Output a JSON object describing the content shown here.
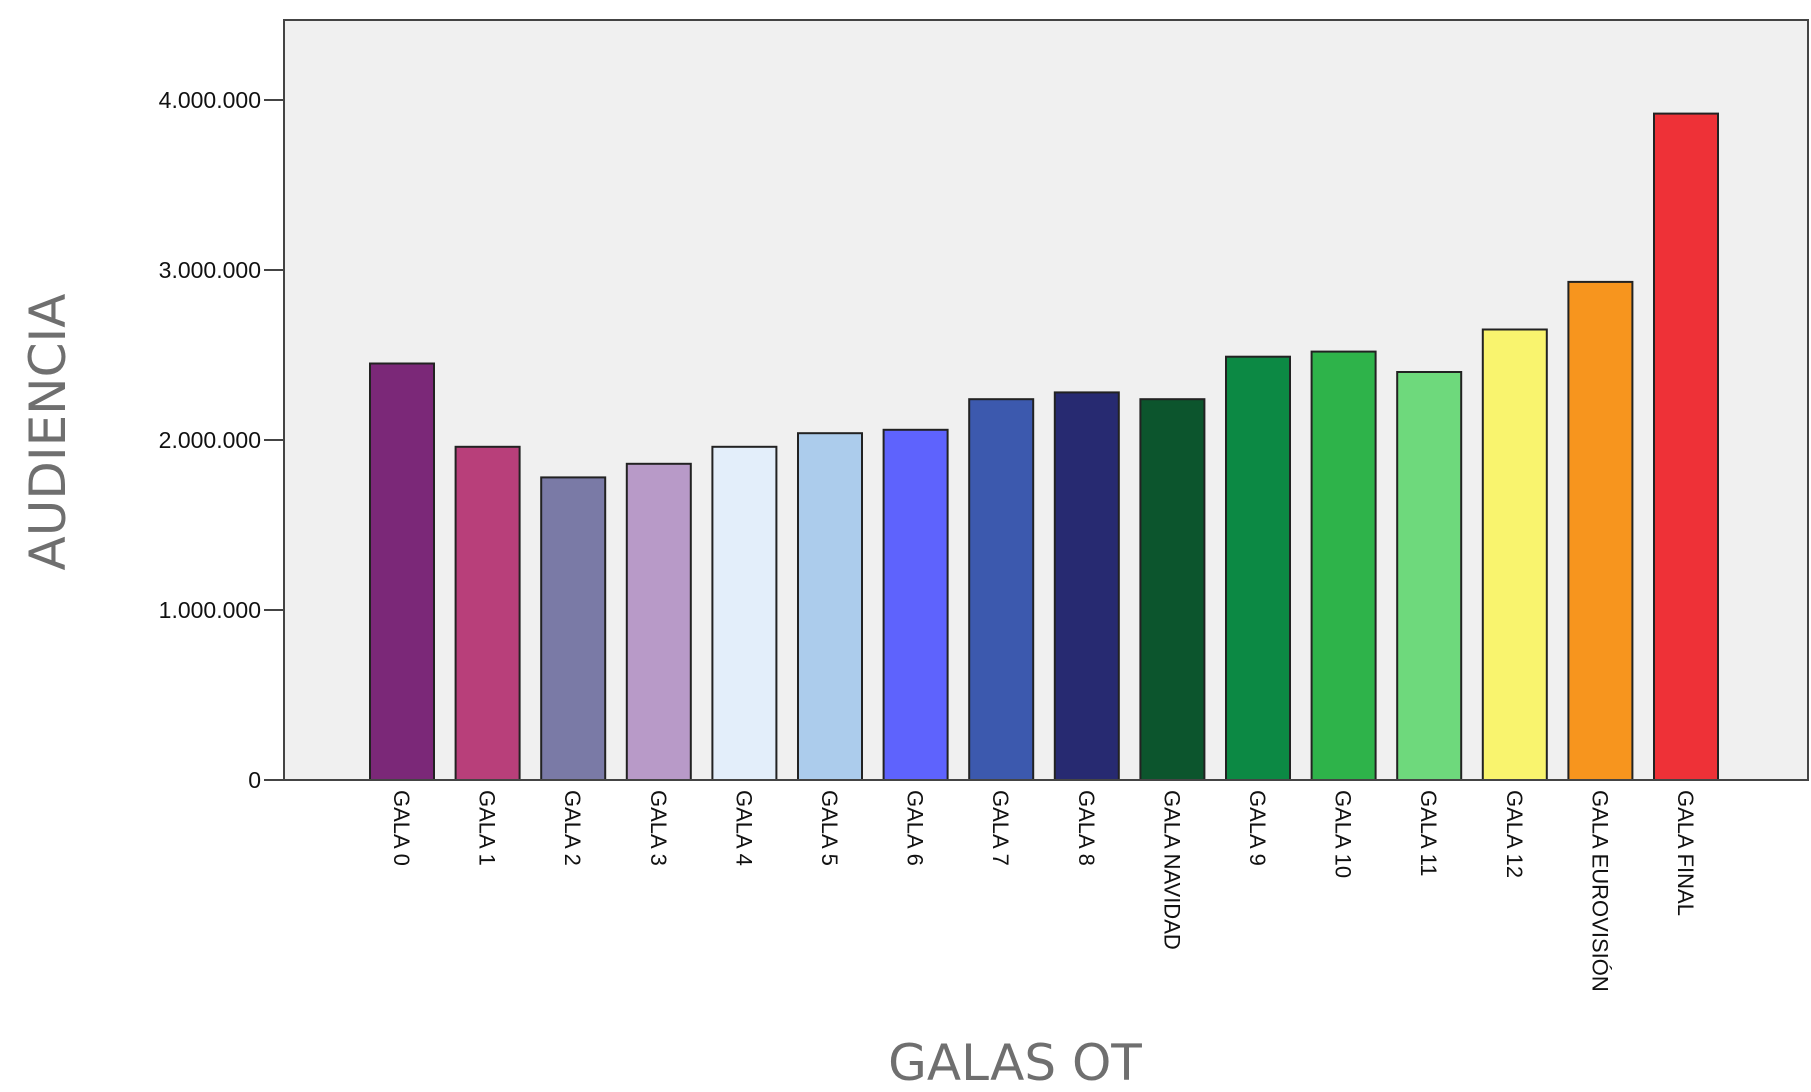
{
  "chart_data": {
    "type": "bar",
    "title": "",
    "xlabel": "GALAS OT",
    "ylabel": "AUDIENCIA",
    "ylim": [
      0,
      4450000
    ],
    "yticks": [
      0,
      1000000,
      2000000,
      3000000,
      4000000
    ],
    "ytick_labels": [
      "0",
      "1.000.000",
      "2.000.000",
      "3.000.000",
      "4.000.000"
    ],
    "grid": false,
    "legend": "none",
    "plot_background": "#f0f0f0",
    "categories": [
      "GALA 0",
      "GALA 1",
      "GALA 2",
      "GALA 3",
      "GALA 4",
      "GALA 5",
      "GALA 6",
      "GALA 7",
      "GALA 8",
      "GALA NAVIDAD",
      "GALA 9",
      "GALA 10",
      "GALA 11",
      "GALA 12",
      "GALA EUROVISIÓN",
      "GALA FINAL"
    ],
    "values": [
      2450000,
      1960000,
      1780000,
      1860000,
      1960000,
      2040000,
      2060000,
      2240000,
      2280000,
      2240000,
      2490000,
      2520000,
      2400000,
      2650000,
      2930000,
      3920000
    ],
    "colors": [
      "#7b2878",
      "#b83f7a",
      "#7a7aa6",
      "#b89ac8",
      "#e3eefa",
      "#acccec",
      "#5e63fd",
      "#3c59ae",
      "#272a71",
      "#0c552d",
      "#0c8944",
      "#2eb34a",
      "#6ed97c",
      "#f9f46e",
      "#f7951e",
      "#ee3137"
    ]
  }
}
